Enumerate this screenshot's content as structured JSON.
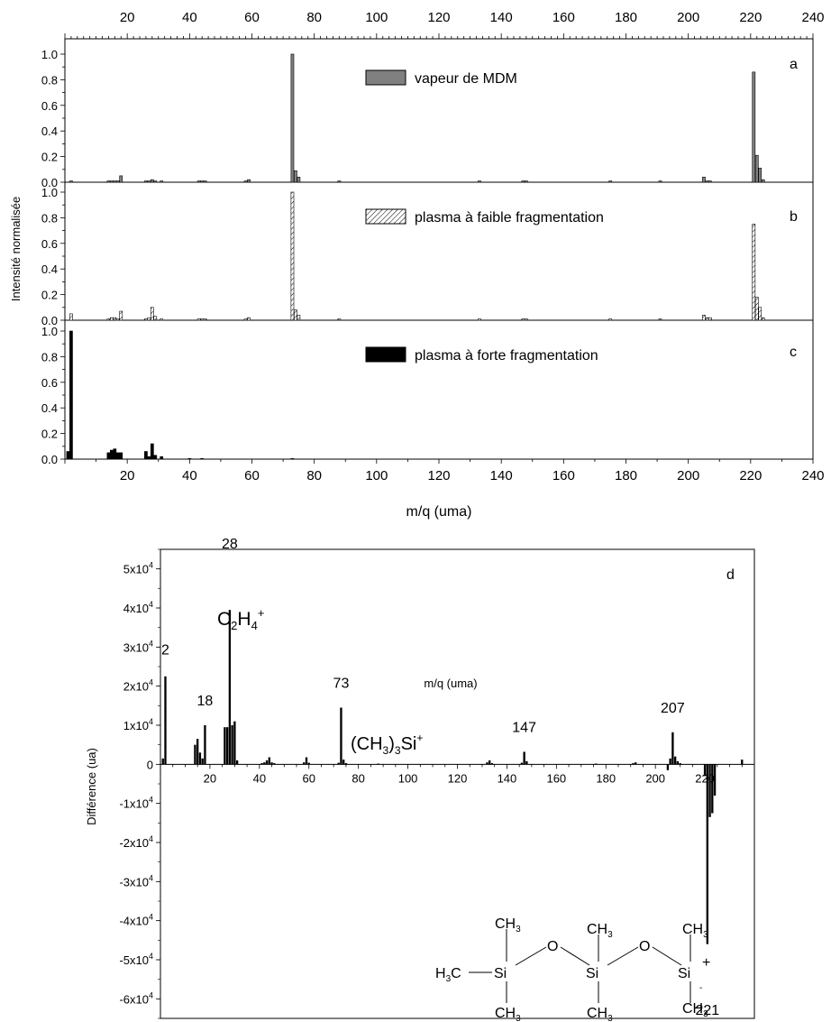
{
  "chart_data": [
    {
      "type": "bar",
      "panels": [
        "a",
        "b",
        "c"
      ],
      "xlabel": "m/q (uma)",
      "ylabel": "Intensité normalisée",
      "xlim": [
        0,
        240
      ],
      "ylim": [
        0,
        1.05
      ],
      "x_ticks": [
        "20",
        "40",
        "60",
        "80",
        "100",
        "120",
        "140",
        "160",
        "180",
        "200",
        "220",
        "240"
      ],
      "y_ticks": [
        "0.0",
        "0.2",
        "0.4",
        "0.6",
        "0.8",
        "1.0"
      ],
      "series": [
        {
          "name": "vapeur de MDM",
          "panel": "a",
          "fill": "gray",
          "x": [
            2,
            14,
            15,
            16,
            17,
            18,
            26,
            27,
            28,
            29,
            31,
            43,
            44,
            45,
            58,
            59,
            73,
            74,
            75,
            88,
            133,
            147,
            148,
            175,
            191,
            205,
            206,
            207,
            221,
            222,
            223,
            224
          ],
          "values": [
            0.01,
            0.01,
            0.01,
            0.01,
            0.01,
            0.05,
            0.01,
            0.01,
            0.02,
            0.01,
            0.01,
            0.01,
            0.01,
            0.01,
            0.01,
            0.02,
            1.0,
            0.09,
            0.04,
            0.01,
            0.01,
            0.01,
            0.01,
            0.01,
            0.01,
            0.04,
            0.01,
            0.01,
            0.86,
            0.21,
            0.11,
            0.02
          ]
        },
        {
          "name": "plasma à faible fragmentation",
          "panel": "b",
          "fill": "hatched",
          "x": [
            2,
            14,
            15,
            16,
            17,
            18,
            26,
            27,
            28,
            29,
            31,
            43,
            44,
            45,
            58,
            59,
            73,
            74,
            75,
            88,
            133,
            147,
            148,
            175,
            191,
            205,
            206,
            207,
            221,
            222,
            223,
            224
          ],
          "values": [
            0.05,
            0.01,
            0.02,
            0.02,
            0.01,
            0.07,
            0.01,
            0.02,
            0.1,
            0.03,
            0.01,
            0.01,
            0.01,
            0.01,
            0.01,
            0.02,
            1.0,
            0.08,
            0.04,
            0.01,
            0.01,
            0.01,
            0.01,
            0.01,
            0.01,
            0.04,
            0.02,
            0.02,
            0.75,
            0.18,
            0.1,
            0.02
          ]
        },
        {
          "name": "plasma à forte fragmentation",
          "panel": "c",
          "fill": "black",
          "x": [
            1,
            2,
            14,
            15,
            16,
            17,
            18,
            26,
            27,
            28,
            29,
            31,
            40,
            44,
            73
          ],
          "values": [
            0.06,
            1.0,
            0.05,
            0.07,
            0.08,
            0.05,
            0.05,
            0.06,
            0.02,
            0.12,
            0.03,
            0.02,
            0.005,
            0.005,
            0.005
          ]
        }
      ],
      "panel_labels": [
        "a",
        "b",
        "c"
      ]
    },
    {
      "type": "bar",
      "panel": "d",
      "xlabel": "m/q (uma)",
      "ylabel": "Différence (ua)",
      "xlim": [
        0,
        240
      ],
      "ylim": [
        -65000,
        55000
      ],
      "x_ticks": [
        "20",
        "40",
        "60",
        "80",
        "100",
        "120",
        "140",
        "160",
        "180",
        "200",
        "220"
      ],
      "y_ticks": [
        {
          "value": 50000,
          "mantissa": "5x10",
          "exp": "4"
        },
        {
          "value": 40000,
          "mantissa": "4x10",
          "exp": "4"
        },
        {
          "value": 30000,
          "mantissa": "3x10",
          "exp": "4"
        },
        {
          "value": 20000,
          "mantissa": "2x10",
          "exp": "4"
        },
        {
          "value": 10000,
          "mantissa": "1x10",
          "exp": "4"
        },
        {
          "value": 0,
          "mantissa": "0",
          "exp": ""
        },
        {
          "value": -10000,
          "mantissa": "-1x10",
          "exp": "4"
        },
        {
          "value": -20000,
          "mantissa": "-2x10",
          "exp": "4"
        },
        {
          "value": -30000,
          "mantissa": "-3x10",
          "exp": "4"
        },
        {
          "value": -40000,
          "mantissa": "-4x10",
          "exp": "4"
        },
        {
          "value": -50000,
          "mantissa": "-5x10",
          "exp": "4"
        },
        {
          "value": -60000,
          "mantissa": "-6x10",
          "exp": "4"
        }
      ],
      "x": [
        1,
        2,
        14,
        15,
        16,
        17,
        18,
        26,
        27,
        28,
        29,
        30,
        31,
        41,
        42,
        43,
        44,
        45,
        46,
        58,
        59,
        60,
        72,
        73,
        74,
        75,
        88,
        132,
        133,
        134,
        146,
        147,
        148,
        176,
        191,
        192,
        205,
        206,
        207,
        208,
        209,
        210,
        220,
        221,
        222,
        223,
        224,
        235
      ],
      "values": [
        1500,
        22500,
        5000,
        6500,
        3000,
        1500,
        10000,
        9500,
        9500,
        39500,
        10000,
        11000,
        1000,
        300,
        500,
        1000,
        1800,
        500,
        300,
        500,
        1800,
        400,
        400,
        14500,
        1200,
        300,
        200,
        500,
        1000,
        300,
        400,
        3200,
        800,
        200,
        300,
        500,
        -1500,
        1500,
        8200,
        2000,
        800,
        300,
        -3000,
        -46000,
        -13500,
        -12500,
        -8000,
        1200
      ],
      "annotations": [
        {
          "text": "2",
          "x": 2,
          "y": 23000
        },
        {
          "text": "18",
          "x": 18,
          "y": 10000
        },
        {
          "text": "28",
          "x": 28,
          "y": 39500
        },
        {
          "text": "73",
          "x": 73,
          "y": 14500
        },
        {
          "text": "147",
          "x": 147,
          "y": 3200
        },
        {
          "text": "207",
          "x": 207,
          "y": 8200
        },
        {
          "text": "221",
          "x": 221,
          "y": -46000
        }
      ],
      "labels": {
        "c2h4_main": "C",
        "c2h4_sub1": "2",
        "c2h4_mid": "H",
        "c2h4_sub2": "4",
        "c2h4_sup": "+",
        "tms_pre": "(CH",
        "tms_sub": "3",
        "tms_post": ")",
        "tms_sub2": "3",
        "tms_end": "Si",
        "tms_sup": "+"
      },
      "structure": {
        "ch3": "CH",
        "three": "3",
        "h3c_h": "H",
        "h3c_c": "C",
        "si": "Si",
        "o": "O",
        "plus": "+",
        "minus": "-"
      },
      "panel_label": "d"
    }
  ]
}
